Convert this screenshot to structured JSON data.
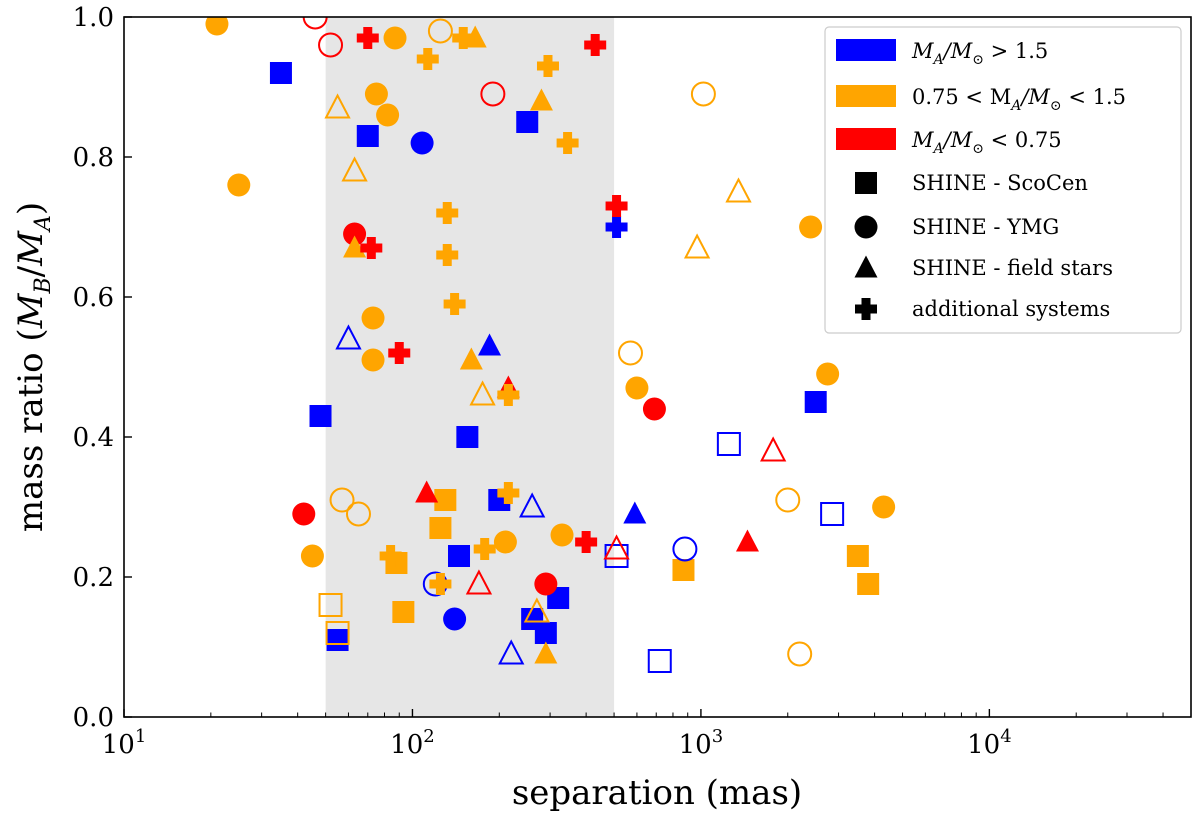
{
  "chart_data": {
    "type": "scatter",
    "title": "",
    "xlabel": "separation (mas)",
    "ylabel": "mass ratio (M_B/M_A)",
    "ylabel_prefix": "mass ratio (",
    "ylabel_suffix": ")",
    "ylabel_math": {
      "M1": "M",
      "s1": "B",
      "slash": "/",
      "M2": "M",
      "s2": "A"
    },
    "xscale": "log",
    "xlim": [
      10,
      50000
    ],
    "ylim": [
      0.0,
      1.0
    ],
    "grid": false,
    "legend_position": "top-right",
    "shaded_region": {
      "x_from": 50,
      "x_to": 500,
      "color": "#e6e6e6"
    },
    "x_ticks": [
      {
        "value": 10,
        "base": "10",
        "exp": "1"
      },
      {
        "value": 100,
        "base": "10",
        "exp": "2"
      },
      {
        "value": 1000,
        "base": "10",
        "exp": "3"
      },
      {
        "value": 10000,
        "base": "10",
        "exp": "4"
      }
    ],
    "y_ticks": [
      "0.0",
      "0.2",
      "0.4",
      "0.6",
      "0.8",
      "1.0"
    ],
    "colors": {
      "blue": "#0000ff",
      "orange": "#ffa500",
      "red": "#ff0000",
      "black": "#000000"
    },
    "legend": {
      "colors": [
        {
          "key": "blue",
          "label": "M_A/M_sun > 1.5",
          "parts": [
            "M",
            "A",
            "/M",
            "⊙",
            " > 1.5"
          ]
        },
        {
          "key": "orange",
          "label": "0.75 < M_A/M_sun < 1.5",
          "parts": [
            "0.75 < M",
            "A",
            "/M",
            "⊙",
            " < 1.5"
          ]
        },
        {
          "key": "red",
          "label": "M_A/M_sun < 0.75",
          "parts": [
            "M",
            "A",
            "/M",
            "⊙",
            " < 0.75"
          ]
        }
      ],
      "markers": [
        {
          "shape": "square",
          "label": "SHINE - ScoCen"
        },
        {
          "shape": "circle",
          "label": "SHINE - YMG"
        },
        {
          "shape": "triangle",
          "label": "SHINE - field stars"
        },
        {
          "shape": "plus",
          "label": "additional systems"
        }
      ]
    },
    "series": [
      {
        "name": "SHINE - ScoCen",
        "shape": "square",
        "points": [
          {
            "x": 35,
            "y": 0.92,
            "c": "blue",
            "f": true
          },
          {
            "x": 70,
            "y": 0.83,
            "c": "blue",
            "f": true
          },
          {
            "x": 250,
            "y": 0.85,
            "c": "blue",
            "f": true
          },
          {
            "x": 48,
            "y": 0.43,
            "c": "blue",
            "f": true
          },
          {
            "x": 155,
            "y": 0.4,
            "c": "blue",
            "f": true
          },
          {
            "x": 2500,
            "y": 0.45,
            "c": "blue",
            "f": true
          },
          {
            "x": 200,
            "y": 0.31,
            "c": "blue",
            "f": true
          },
          {
            "x": 145,
            "y": 0.23,
            "c": "blue",
            "f": true
          },
          {
            "x": 55,
            "y": 0.11,
            "c": "blue",
            "f": true
          },
          {
            "x": 260,
            "y": 0.14,
            "c": "blue",
            "f": true
          },
          {
            "x": 290,
            "y": 0.12,
            "c": "blue",
            "f": true
          },
          {
            "x": 320,
            "y": 0.17,
            "c": "blue",
            "f": true
          },
          {
            "x": 1250,
            "y": 0.39,
            "c": "blue",
            "f": false
          },
          {
            "x": 2850,
            "y": 0.29,
            "c": "blue",
            "f": false
          },
          {
            "x": 510,
            "y": 0.23,
            "c": "blue",
            "f": false
          },
          {
            "x": 720,
            "y": 0.08,
            "c": "blue",
            "f": false
          },
          {
            "x": 130,
            "y": 0.31,
            "c": "orange",
            "f": true
          },
          {
            "x": 125,
            "y": 0.27,
            "c": "orange",
            "f": true
          },
          {
            "x": 88,
            "y": 0.22,
            "c": "orange",
            "f": true
          },
          {
            "x": 93,
            "y": 0.15,
            "c": "orange",
            "f": true
          },
          {
            "x": 870,
            "y": 0.21,
            "c": "orange",
            "f": true
          },
          {
            "x": 3500,
            "y": 0.23,
            "c": "orange",
            "f": true
          },
          {
            "x": 3800,
            "y": 0.19,
            "c": "orange",
            "f": true
          },
          {
            "x": 52,
            "y": 0.16,
            "c": "orange",
            "f": false
          },
          {
            "x": 55,
            "y": 0.12,
            "c": "orange",
            "f": false
          }
        ]
      },
      {
        "name": "SHINE - YMG",
        "shape": "circle",
        "points": [
          {
            "x": 108,
            "y": 0.82,
            "c": "blue",
            "f": true
          },
          {
            "x": 140,
            "y": 0.14,
            "c": "blue",
            "f": true
          },
          {
            "x": 120,
            "y": 0.19,
            "c": "blue",
            "f": false
          },
          {
            "x": 880,
            "y": 0.24,
            "c": "blue",
            "f": false
          },
          {
            "x": 21,
            "y": 0.99,
            "c": "orange",
            "f": true
          },
          {
            "x": 25,
            "y": 0.76,
            "c": "orange",
            "f": true
          },
          {
            "x": 87,
            "y": 0.97,
            "c": "orange",
            "f": true
          },
          {
            "x": 75,
            "y": 0.89,
            "c": "orange",
            "f": true
          },
          {
            "x": 82,
            "y": 0.86,
            "c": "orange",
            "f": true
          },
          {
            "x": 73,
            "y": 0.57,
            "c": "orange",
            "f": true
          },
          {
            "x": 73,
            "y": 0.51,
            "c": "orange",
            "f": true
          },
          {
            "x": 45,
            "y": 0.23,
            "c": "orange",
            "f": true
          },
          {
            "x": 210,
            "y": 0.25,
            "c": "orange",
            "f": true
          },
          {
            "x": 330,
            "y": 0.26,
            "c": "orange",
            "f": true
          },
          {
            "x": 600,
            "y": 0.47,
            "c": "orange",
            "f": true
          },
          {
            "x": 2400,
            "y": 0.7,
            "c": "orange",
            "f": true
          },
          {
            "x": 2750,
            "y": 0.49,
            "c": "orange",
            "f": true
          },
          {
            "x": 4300,
            "y": 0.3,
            "c": "orange",
            "f": true
          },
          {
            "x": 125,
            "y": 0.98,
            "c": "orange",
            "f": false
          },
          {
            "x": 1020,
            "y": 0.89,
            "c": "orange",
            "f": false
          },
          {
            "x": 570,
            "y": 0.52,
            "c": "orange",
            "f": false
          },
          {
            "x": 57,
            "y": 0.31,
            "c": "orange",
            "f": false
          },
          {
            "x": 65,
            "y": 0.29,
            "c": "orange",
            "f": false
          },
          {
            "x": 2000,
            "y": 0.31,
            "c": "orange",
            "f": false
          },
          {
            "x": 2200,
            "y": 0.09,
            "c": "orange",
            "f": false
          },
          {
            "x": 63,
            "y": 0.69,
            "c": "red",
            "f": true
          },
          {
            "x": 42,
            "y": 0.29,
            "c": "red",
            "f": true
          },
          {
            "x": 290,
            "y": 0.19,
            "c": "red",
            "f": true
          },
          {
            "x": 690,
            "y": 0.44,
            "c": "red",
            "f": true
          },
          {
            "x": 52,
            "y": 0.96,
            "c": "red",
            "f": false
          },
          {
            "x": 46,
            "y": 1.0,
            "c": "red",
            "f": false
          },
          {
            "x": 190,
            "y": 0.89,
            "c": "red",
            "f": false
          }
        ]
      },
      {
        "name": "SHINE - field stars",
        "shape": "triangle",
        "points": [
          {
            "x": 185,
            "y": 0.53,
            "c": "blue",
            "f": true
          },
          {
            "x": 590,
            "y": 0.29,
            "c": "blue",
            "f": true
          },
          {
            "x": 60,
            "y": 0.54,
            "c": "blue",
            "f": false
          },
          {
            "x": 260,
            "y": 0.3,
            "c": "blue",
            "f": false
          },
          {
            "x": 220,
            "y": 0.09,
            "c": "blue",
            "f": false
          },
          {
            "x": 165,
            "y": 0.97,
            "c": "orange",
            "f": true
          },
          {
            "x": 280,
            "y": 0.88,
            "c": "orange",
            "f": true
          },
          {
            "x": 63,
            "y": 0.67,
            "c": "orange",
            "f": true
          },
          {
            "x": 160,
            "y": 0.51,
            "c": "orange",
            "f": true
          },
          {
            "x": 290,
            "y": 0.09,
            "c": "orange",
            "f": true
          },
          {
            "x": 55,
            "y": 0.87,
            "c": "orange",
            "f": false
          },
          {
            "x": 63,
            "y": 0.78,
            "c": "orange",
            "f": false
          },
          {
            "x": 175,
            "y": 0.46,
            "c": "orange",
            "f": false
          },
          {
            "x": 1350,
            "y": 0.75,
            "c": "orange",
            "f": false
          },
          {
            "x": 970,
            "y": 0.67,
            "c": "orange",
            "f": false
          },
          {
            "x": 270,
            "y": 0.15,
            "c": "orange",
            "f": false
          },
          {
            "x": 112,
            "y": 0.32,
            "c": "red",
            "f": true
          },
          {
            "x": 1450,
            "y": 0.25,
            "c": "red",
            "f": true
          },
          {
            "x": 215,
            "y": 0.47,
            "c": "red",
            "f": true
          },
          {
            "x": 1780,
            "y": 0.38,
            "c": "red",
            "f": false
          },
          {
            "x": 170,
            "y": 0.19,
            "c": "red",
            "f": false
          },
          {
            "x": 510,
            "y": 0.24,
            "c": "red",
            "f": false
          }
        ]
      },
      {
        "name": "additional systems",
        "shape": "plus",
        "points": [
          {
            "x": 510,
            "y": 0.7,
            "c": "blue",
            "f": true
          },
          {
            "x": 113,
            "y": 0.94,
            "c": "orange",
            "f": true
          },
          {
            "x": 150,
            "y": 0.97,
            "c": "orange",
            "f": true
          },
          {
            "x": 295,
            "y": 0.93,
            "c": "orange",
            "f": true
          },
          {
            "x": 345,
            "y": 0.82,
            "c": "orange",
            "f": true
          },
          {
            "x": 132,
            "y": 0.72,
            "c": "orange",
            "f": true
          },
          {
            "x": 132,
            "y": 0.66,
            "c": "orange",
            "f": true
          },
          {
            "x": 140,
            "y": 0.59,
            "c": "orange",
            "f": true
          },
          {
            "x": 215,
            "y": 0.46,
            "c": "orange",
            "f": true
          },
          {
            "x": 215,
            "y": 0.32,
            "c": "orange",
            "f": true
          },
          {
            "x": 84,
            "y": 0.23,
            "c": "orange",
            "f": true
          },
          {
            "x": 178,
            "y": 0.24,
            "c": "orange",
            "f": true
          },
          {
            "x": 125,
            "y": 0.19,
            "c": "orange",
            "f": true
          },
          {
            "x": 70,
            "y": 0.97,
            "c": "red",
            "f": true
          },
          {
            "x": 430,
            "y": 0.96,
            "c": "red",
            "f": true
          },
          {
            "x": 510,
            "y": 0.73,
            "c": "red",
            "f": true
          },
          {
            "x": 72,
            "y": 0.67,
            "c": "red",
            "f": true
          },
          {
            "x": 90,
            "y": 0.52,
            "c": "red",
            "f": true
          },
          {
            "x": 400,
            "y": 0.25,
            "c": "red",
            "f": true
          }
        ]
      }
    ]
  }
}
